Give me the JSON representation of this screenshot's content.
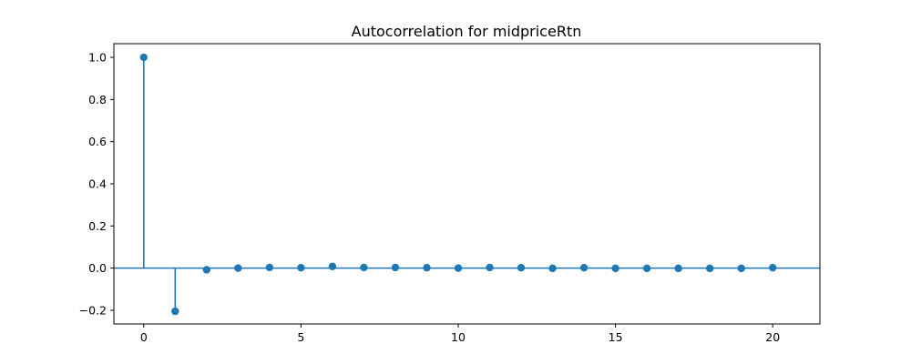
{
  "chart_data": {
    "type": "stem",
    "title": "Autocorrelation for midpriceRtn",
    "xlabel": "",
    "ylabel": "",
    "xlim": [
      -0.95,
      21.5
    ],
    "ylim": [
      -0.265,
      1.065
    ],
    "xticks": [
      0,
      5,
      10,
      15,
      20
    ],
    "xtick_labels": [
      "0",
      "5",
      "10",
      "15",
      "20"
    ],
    "yticks": [
      -0.2,
      0.0,
      0.2,
      0.4,
      0.6,
      0.8,
      1.0
    ],
    "ytick_labels": [
      "−0.2",
      "0.0",
      "0.2",
      "0.4",
      "0.6",
      "0.8",
      "1.0"
    ],
    "baseline": 0,
    "grid": false,
    "color": "#1f77b4",
    "series": [
      {
        "lags": [
          0,
          1,
          2,
          3,
          4,
          5,
          6,
          7,
          8,
          9,
          10,
          11,
          12,
          13,
          14,
          15,
          16,
          17,
          18,
          19,
          20
        ],
        "values": [
          1.0,
          -0.205,
          -0.008,
          0.0,
          0.003,
          0.002,
          0.008,
          0.003,
          0.003,
          0.002,
          0.0,
          0.003,
          0.002,
          -0.001,
          0.002,
          -0.001,
          -0.001,
          -0.001,
          -0.001,
          -0.001,
          0.002
        ]
      }
    ]
  }
}
